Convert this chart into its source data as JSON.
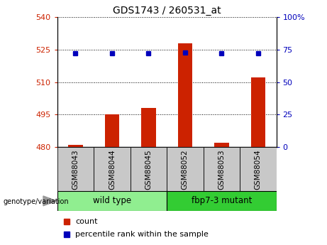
{
  "title": "GDS1743 / 260531_at",
  "samples": [
    "GSM88043",
    "GSM88044",
    "GSM88045",
    "GSM88052",
    "GSM88053",
    "GSM88054"
  ],
  "count_values": [
    481,
    495,
    498,
    528,
    482,
    512
  ],
  "percentile_values": [
    72,
    72,
    72,
    73,
    72,
    72
  ],
  "ylim_left": [
    480,
    540
  ],
  "ylim_right": [
    0,
    100
  ],
  "yticks_left": [
    480,
    495,
    510,
    525,
    540
  ],
  "ytick_labels_left": [
    "480",
    "495",
    "510",
    "525",
    "540"
  ],
  "yticks_right": [
    0,
    25,
    50,
    75,
    100
  ],
  "ytick_labels_right": [
    "0",
    "25",
    "50",
    "75",
    "100%"
  ],
  "bar_color": "#CC2200",
  "dot_color": "#0000BB",
  "group_colors": [
    "#90EE90",
    "#33CC33"
  ],
  "bg_color": "#FFFFFF",
  "grid_color": "#000000",
  "tick_label_color_left": "#CC2200",
  "tick_label_color_right": "#0000BB",
  "legend_count_label": "count",
  "legend_pct_label": "percentile rank within the sample",
  "genotype_label": "genotype/variation",
  "sample_bg_color": "#C8C8C8",
  "group_boundaries": [
    [
      0,
      2,
      "wild type",
      0
    ],
    [
      3,
      5,
      "fbp7-3 mutant",
      1
    ]
  ]
}
